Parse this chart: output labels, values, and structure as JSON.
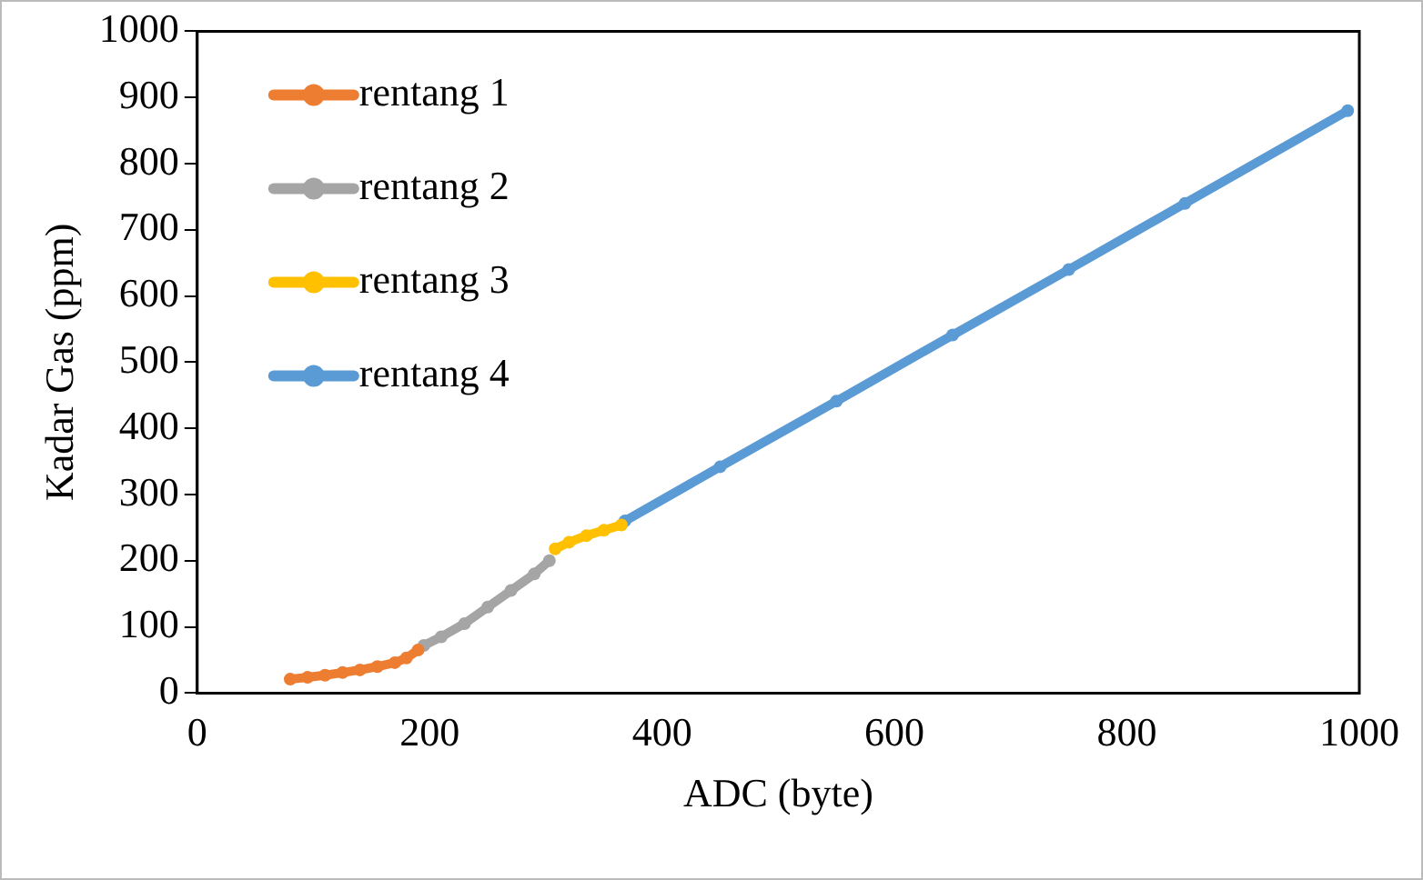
{
  "chart_data": {
    "type": "line",
    "xlabel": "ADC (byte)",
    "ylabel": "Kadar Gas (ppm)",
    "xlim": [
      0,
      1000
    ],
    "xticks": [
      0,
      200,
      400,
      600,
      800,
      1000
    ],
    "ylim": [
      0,
      1000
    ],
    "yticks": [
      0,
      100,
      200,
      300,
      400,
      500,
      600,
      700,
      800,
      900,
      1000
    ],
    "grid": false,
    "legend": "top left",
    "marker": "circle",
    "line_style": "solid",
    "series": [
      {
        "name": "rentang 1",
        "color": "#ed7d31",
        "x": [
          80,
          95,
          110,
          125,
          140,
          155,
          170,
          180,
          190
        ],
        "values": [
          21,
          24,
          27,
          31,
          35,
          40,
          46,
          53,
          65
        ]
      },
      {
        "name": "rentang 2",
        "color": "#a5a5a5",
        "x": [
          195,
          210,
          230,
          250,
          270,
          290,
          303
        ],
        "values": [
          72,
          85,
          105,
          130,
          155,
          180,
          200
        ]
      },
      {
        "name": "rentang 3",
        "color": "#ffc000",
        "x": [
          308,
          320,
          335,
          350,
          365
        ],
        "values": [
          218,
          228,
          238,
          246,
          254
        ]
      },
      {
        "name": "rentang 4",
        "color": "#5b9bd5",
        "x": [
          368,
          450,
          550,
          650,
          750,
          850,
          990
        ],
        "values": [
          260,
          342,
          441,
          541,
          640,
          740,
          880
        ]
      }
    ]
  }
}
